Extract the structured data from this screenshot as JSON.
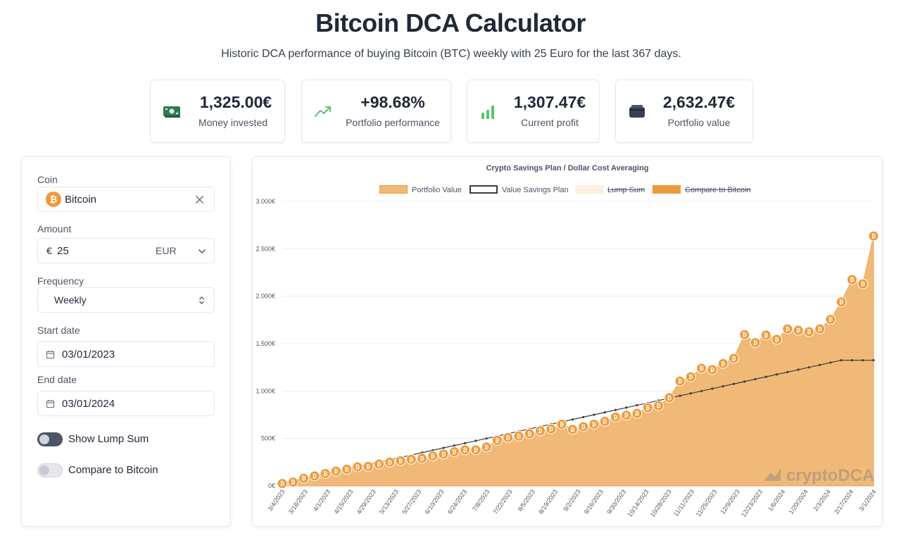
{
  "header": {
    "title": "Bitcoin DCA Calculator",
    "subtitle": "Historic DCA performance of buying Bitcoin (BTC) weekly with 25 Euro for the last 367 days."
  },
  "stats": [
    {
      "value": "1,325.00€",
      "label": "Money invested",
      "icon": "money-icon"
    },
    {
      "value": "+98.68%",
      "label": "Portfolio performance",
      "icon": "trend-up-icon"
    },
    {
      "value": "1,307.47€",
      "label": "Current profit",
      "icon": "bar-chart-icon"
    },
    {
      "value": "2,632.47€",
      "label": "Portfolio value",
      "icon": "wallet-icon"
    }
  ],
  "form": {
    "coin_label": "Coin",
    "coin_value": "Bitcoin",
    "amount_label": "Amount",
    "amount_prefix": "€",
    "amount_value": "25",
    "currency": "EUR",
    "frequency_label": "Frequency",
    "frequency_value": "Weekly",
    "start_label": "Start date",
    "start_value": "03/01/2023",
    "end_label": "End date",
    "end_value": "03/01/2024",
    "lump_sum_label": "Show Lump Sum",
    "lump_sum_on": false,
    "compare_label": "Compare to Bitcoin",
    "compare_on": false
  },
  "colors": {
    "accent": "#ee9a3a",
    "area": "#f0b977",
    "savings_line": "#3d3d3d",
    "toggle_dark": "#4b5563",
    "toggle_light": "#e5e7eb",
    "icon_green": "#2f7d4f",
    "icon_green_light": "#5cc46f"
  },
  "chart_data": {
    "type": "area",
    "title": "Crypto Savings Plan / Dollar Cost Averaging",
    "legend": [
      {
        "name": "Portfolio Value",
        "struck": false
      },
      {
        "name": "Value Savings Plan",
        "struck": false
      },
      {
        "name": "Lump Sum",
        "struck": true
      },
      {
        "name": "Compare to Bitcoin",
        "struck": true
      }
    ],
    "ylim": [
      0,
      3000
    ],
    "yticks": [
      0,
      500,
      1000,
      1500,
      2000,
      2500,
      3000
    ],
    "ytick_labels": [
      "0€",
      "500€",
      "1.000€",
      "1.500€",
      "2.000€",
      "2.500€",
      "3.000€"
    ],
    "x_labels": [
      "3/4/2023",
      "3/18/2023",
      "4/1/2023",
      "4/15/2023",
      "4/29/2023",
      "5/13/2023",
      "5/27/2023",
      "6/10/2023",
      "6/24/2023",
      "7/8/2023",
      "7/22/2023",
      "8/5/2023",
      "8/19/2023",
      "9/2/2023",
      "9/16/2023",
      "9/30/2023",
      "10/14/2023",
      "10/28/2023",
      "11/11/2023",
      "11/25/2023",
      "12/9/2023",
      "12/23/2023",
      "1/6/2024",
      "1/20/2024",
      "2/3/2024",
      "2/17/2024",
      "3/1/2024"
    ],
    "series": [
      {
        "name": "Portfolio Value",
        "values": [
          25,
          40,
          80,
          105,
          130,
          155,
          175,
          200,
          205,
          230,
          250,
          265,
          280,
          290,
          315,
          335,
          360,
          380,
          380,
          410,
          480,
          510,
          525,
          550,
          580,
          600,
          650,
          595,
          625,
          650,
          680,
          725,
          745,
          765,
          825,
          845,
          930,
          1105,
          1150,
          1240,
          1225,
          1290,
          1345,
          1595,
          1510,
          1590,
          1545,
          1655,
          1640,
          1625,
          1655,
          1755,
          1940,
          2175,
          2130,
          2635
        ]
      },
      {
        "name": "Value Savings Plan",
        "values": [
          25,
          50,
          75,
          100,
          125,
          150,
          175,
          200,
          225,
          250,
          275,
          300,
          325,
          350,
          375,
          400,
          425,
          450,
          475,
          500,
          525,
          550,
          575,
          600,
          625,
          650,
          675,
          700,
          725,
          750,
          775,
          800,
          825,
          850,
          875,
          900,
          925,
          950,
          975,
          1000,
          1025,
          1050,
          1075,
          1100,
          1125,
          1150,
          1175,
          1200,
          1225,
          1250,
          1275,
          1300,
          1325,
          1325,
          1325,
          1325
        ]
      }
    ],
    "watermark": "cryptoDCA"
  }
}
